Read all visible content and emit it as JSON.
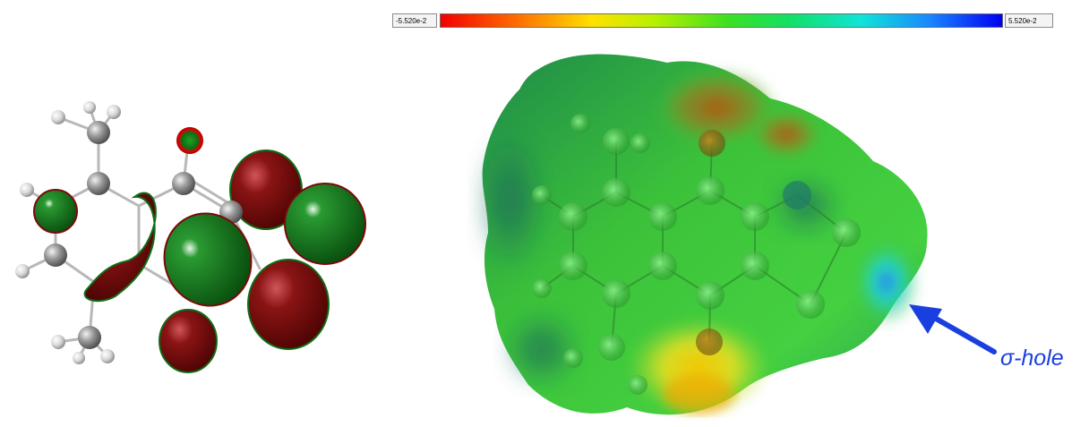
{
  "color_scale": {
    "min_label": "-5.520e-2",
    "max_label": "5.520e-2",
    "colors": [
      "#f20000",
      "#ff7000",
      "#ffe100",
      "#b8f000",
      "#3ee020",
      "#12e064",
      "#10e4d8",
      "#1a88ff",
      "#0000f0"
    ]
  },
  "annotation": {
    "label": "σ-hole",
    "color": "#1a3fe0"
  },
  "molecule": {
    "atom_colors": {
      "carbon": "#8c8c8c",
      "hydrogen": "#ececec",
      "oxygen": "#e00000"
    },
    "orbital_lobe_colors": {
      "positive": "#7a0a0a",
      "negative": "#0e6e16"
    }
  }
}
